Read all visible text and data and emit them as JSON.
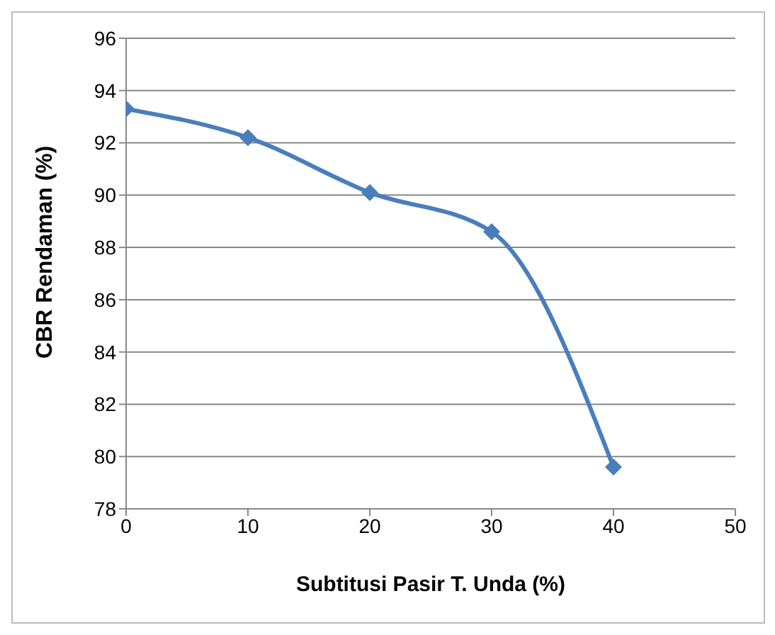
{
  "chart_data": {
    "type": "line",
    "xlabel": "Subtitusi Pasir T. Unda (%)",
    "ylabel": "CBR Rendaman (%)",
    "x": [
      0,
      10,
      20,
      30,
      40
    ],
    "series": [
      {
        "color": "#4a7ebb",
        "values": [
          93.3,
          92.2,
          90.1,
          88.6,
          79.6
        ]
      }
    ],
    "xlim": [
      0,
      50
    ],
    "xticks": [
      0,
      10,
      20,
      30,
      40,
      50
    ],
    "ylim": [
      78,
      96
    ],
    "yticks": [
      78,
      80,
      82,
      84,
      86,
      88,
      90,
      92,
      94,
      96
    ],
    "grid": "y",
    "marker": "diamond",
    "line_style": "solid",
    "legend": false
  }
}
